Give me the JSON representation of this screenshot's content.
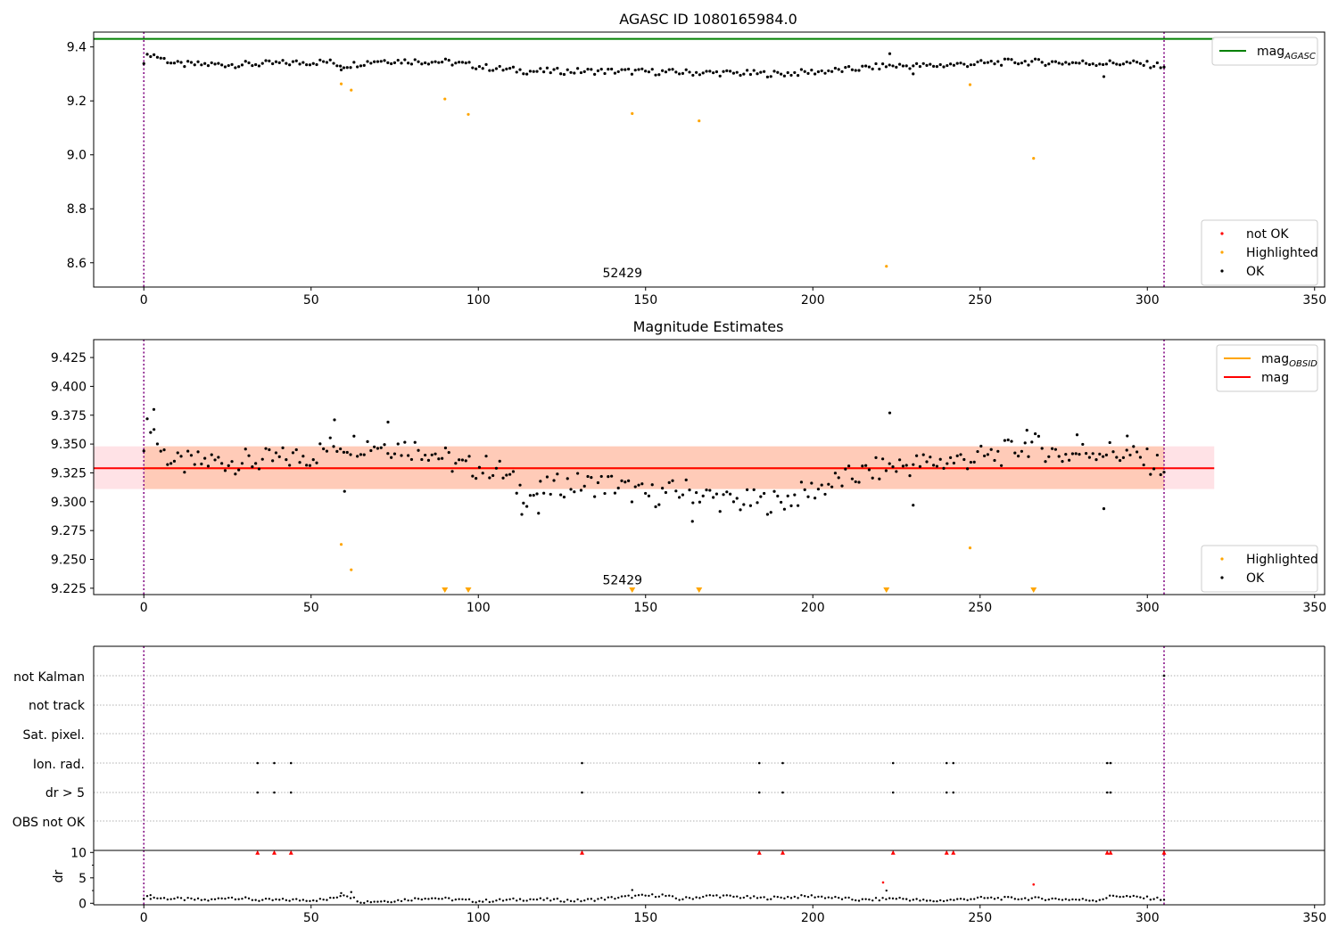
{
  "chart_data": [
    {
      "type": "scatter",
      "title": "AGASC ID 1080165984.0",
      "xlim": [
        -15,
        353
      ],
      "ylim": [
        8.51,
        9.455
      ],
      "xticks": [
        0,
        50,
        100,
        150,
        200,
        250,
        300,
        350
      ],
      "yticks": [
        8.6,
        8.8,
        9.0,
        9.2,
        9.4
      ],
      "ytick_labels": [
        "8.6",
        "8.8",
        "9.0",
        "9.2",
        "9.4"
      ],
      "annotation": {
        "text": "52429",
        "x": 147,
        "y": 8.54
      },
      "vlines": [
        0,
        305
      ],
      "hlines": [
        {
          "name": "mag_AGASC",
          "y": 9.43,
          "x0": -15,
          "x1": 320,
          "color": "#008000"
        }
      ],
      "series": [
        {
          "name": "not OK",
          "color": "#ff0000",
          "points": []
        },
        {
          "name": "Highlighted",
          "color": "#ffa500",
          "points": [
            [
              59,
              9.263
            ],
            [
              62,
              9.24
            ],
            [
              90,
              9.207
            ],
            [
              97,
              9.15
            ],
            [
              146,
              9.153
            ],
            [
              166,
              9.126
            ],
            [
              222,
              8.587
            ],
            [
              247,
              9.26
            ],
            [
              266,
              8.987
            ]
          ]
        },
        {
          "name": "OK",
          "color": "#000000",
          "points_profile": {
            "x_start": 0,
            "x_end": 305,
            "count": 302,
            "y_anchors": [
              [
                0,
                9.35
              ],
              [
                2,
                9.375
              ],
              [
                10,
                9.335
              ],
              [
                30,
                9.335
              ],
              [
                55,
                9.345
              ],
              [
                60,
                9.33
              ],
              [
                70,
                9.35
              ],
              [
                90,
                9.345
              ],
              [
                105,
                9.32
              ],
              [
                115,
                9.31
              ],
              [
                140,
                9.31
              ],
              [
                165,
                9.305
              ],
              [
                190,
                9.3
              ],
              [
                210,
                9.315
              ],
              [
                222,
                9.33
              ],
              [
                235,
                9.33
              ],
              [
                260,
                9.345
              ],
              [
                285,
                9.34
              ],
              [
                295,
                9.34
              ],
              [
                305,
                9.33
              ]
            ],
            "amplitude": 0.012,
            "outliers": [
              [
                59,
                9.315
              ],
              [
                223,
                9.375
              ],
              [
                287,
                9.29
              ],
              [
                230,
                9.3
              ]
            ]
          }
        }
      ],
      "legends": [
        {
          "position": "upper right",
          "entries": [
            {
              "label": "mag",
              "sub": "AGASC",
              "color": "#008000",
              "kind": "line"
            }
          ]
        },
        {
          "position": "lower right",
          "entries": [
            {
              "label": "not OK",
              "color": "#ff0000",
              "kind": "point"
            },
            {
              "label": "Highlighted",
              "color": "#ffa500",
              "kind": "point"
            },
            {
              "label": "OK",
              "color": "#000000",
              "kind": "point"
            }
          ]
        }
      ]
    },
    {
      "type": "scatter",
      "title": "Magnitude Estimates",
      "xlim": [
        -15,
        353
      ],
      "ylim": [
        9.2195,
        9.4405
      ],
      "xticks": [
        0,
        50,
        100,
        150,
        200,
        250,
        300,
        350
      ],
      "yticks": [
        9.225,
        9.25,
        9.275,
        9.3,
        9.325,
        9.35,
        9.375,
        9.4,
        9.425
      ],
      "ytick_labels": [
        "9.225",
        "9.250",
        "9.275",
        "9.300",
        "9.325",
        "9.350",
        "9.375",
        "9.400",
        "9.425"
      ],
      "annotation": {
        "text": "52429",
        "x": 147,
        "y": 9.227
      },
      "vlines": [
        0,
        305
      ],
      "bands": [
        {
          "x0": -15,
          "x1": 320,
          "y0": 9.311,
          "y1": 9.348,
          "color": "#ff6f80",
          "opacity": 0.2
        },
        {
          "x0": 0,
          "x1": 305,
          "y0": 9.311,
          "y1": 9.348,
          "color": "#ffa060",
          "opacity": 0.35
        }
      ],
      "hlines": [
        {
          "name": "mag_OBSID",
          "y": 9.329,
          "x0": 0,
          "x1": 305,
          "color": "#ffa500"
        },
        {
          "name": "mag",
          "y": 9.329,
          "x0": -15,
          "x1": 320,
          "color": "#ff0000"
        }
      ],
      "series": [
        {
          "name": "Highlighted",
          "color": "#ffa500",
          "points": [
            [
              59,
              9.263
            ],
            [
              62,
              9.241
            ],
            [
              247,
              9.26
            ]
          ],
          "clipped_x": [
            90,
            97,
            146,
            166,
            222,
            266
          ]
        },
        {
          "name": "OK",
          "color": "#000000",
          "points_profile": {
            "x_start": 0,
            "x_end": 305,
            "count": 302,
            "y_anchors": [
              [
                0,
                9.355
              ],
              [
                2,
                9.37
              ],
              [
                5,
                9.345
              ],
              [
                10,
                9.332
              ],
              [
                20,
                9.335
              ],
              [
                35,
                9.335
              ],
              [
                50,
                9.34
              ],
              [
                58,
                9.35
              ],
              [
                70,
                9.35
              ],
              [
                85,
                9.345
              ],
              [
                95,
                9.33
              ],
              [
                105,
                9.33
              ],
              [
                115,
                9.305
              ],
              [
                125,
                9.315
              ],
              [
                140,
                9.315
              ],
              [
                150,
                9.305
              ],
              [
                162,
                9.31
              ],
              [
                175,
                9.3
              ],
              [
                190,
                9.3
              ],
              [
                210,
                9.32
              ],
              [
                222,
                9.33
              ],
              [
                240,
                9.335
              ],
              [
                255,
                9.34
              ],
              [
                265,
                9.35
              ],
              [
                275,
                9.34
              ],
              [
                285,
                9.345
              ],
              [
                295,
                9.34
              ],
              [
                305,
                9.33
              ]
            ],
            "amplitude": 0.011,
            "outliers": [
              [
                3,
                9.38
              ],
              [
                57,
                9.371
              ],
              [
                60,
                9.309
              ],
              [
                73,
                9.369
              ],
              [
                113,
                9.289
              ],
              [
                118,
                9.29
              ],
              [
                164,
                9.283
              ],
              [
                223,
                9.377
              ],
              [
                230,
                9.297
              ],
              [
                264,
                9.362
              ],
              [
                279,
                9.358
              ],
              [
                287,
                9.294
              ],
              [
                294,
                9.357
              ]
            ]
          }
        }
      ],
      "legends": [
        {
          "position": "upper right",
          "entries": [
            {
              "label": "mag",
              "sub": "OBSID",
              "color": "#ffa500",
              "kind": "line"
            },
            {
              "label": "mag",
              "sub": "",
              "color": "#ff0000",
              "kind": "line"
            }
          ]
        },
        {
          "position": "lower right",
          "entries": [
            {
              "label": "Highlighted",
              "color": "#ffa500",
              "kind": "point"
            },
            {
              "label": "OK",
              "color": "#000000",
              "kind": "point"
            }
          ]
        }
      ]
    },
    {
      "type": "scatter",
      "title": "",
      "xlim": [
        -15,
        353
      ],
      "categories": [
        "not Kalman",
        "not track",
        "Sat. pixel.",
        "Ion. rad.",
        "dr > 5",
        "OBS not OK"
      ],
      "vlines": [
        0,
        305
      ],
      "flags": {
        "not Kalman": [
          305
        ],
        "not track": [],
        "Sat. pixel.": [],
        "Ion. rad.": [
          34,
          39,
          44,
          131,
          184,
          191,
          224,
          240,
          242,
          288,
          289
        ],
        "dr > 5": [
          34,
          39,
          44,
          131,
          184,
          191,
          224,
          240,
          242,
          288,
          289
        ],
        "OBS not OK": []
      }
    },
    {
      "type": "scatter",
      "title": "",
      "ylabel": "dr",
      "xlim": [
        -15,
        353
      ],
      "ylim": [
        -0.3,
        10.4
      ],
      "xticks": [
        0,
        50,
        100,
        150,
        200,
        250,
        300,
        350
      ],
      "yticks": [
        0,
        5,
        10
      ],
      "ytick_labels": [
        "0",
        "5",
        "10"
      ],
      "vlines": [
        0,
        305
      ],
      "clipped_red_x": [
        34,
        39,
        44,
        131,
        184,
        191,
        224,
        240,
        242,
        288,
        289,
        305
      ],
      "red_points": [
        [
          221,
          4.1
        ],
        [
          266,
          3.7
        ]
      ],
      "black_points_profile": {
        "x_start": 0,
        "x_end": 305,
        "count": 302,
        "y_anchors": [
          [
            0,
            1.2
          ],
          [
            5,
            1.0
          ],
          [
            20,
            0.6
          ],
          [
            25,
            1.2
          ],
          [
            35,
            0.6
          ],
          [
            55,
            0.7
          ],
          [
            60,
            1.8
          ],
          [
            65,
            0.3
          ],
          [
            75,
            0.5
          ],
          [
            85,
            1.1
          ],
          [
            100,
            0.4
          ],
          [
            115,
            0.8
          ],
          [
            130,
            0.5
          ],
          [
            145,
            1.3
          ],
          [
            155,
            1.6
          ],
          [
            160,
            0.8
          ],
          [
            170,
            1.5
          ],
          [
            185,
            1.0
          ],
          [
            200,
            1.4
          ],
          [
            215,
            0.6
          ],
          [
            225,
            1.0
          ],
          [
            235,
            0.4
          ],
          [
            250,
            1.0
          ],
          [
            270,
            0.9
          ],
          [
            285,
            0.6
          ],
          [
            290,
            1.5
          ],
          [
            305,
            0.8
          ]
        ],
        "amplitude": 0.3,
        "outliers": [
          [
            146,
            2.6
          ],
          [
            59,
            2.0
          ],
          [
            62,
            2.2
          ],
          [
            222,
            2.5
          ],
          [
            2,
            1.6
          ]
        ]
      }
    }
  ]
}
